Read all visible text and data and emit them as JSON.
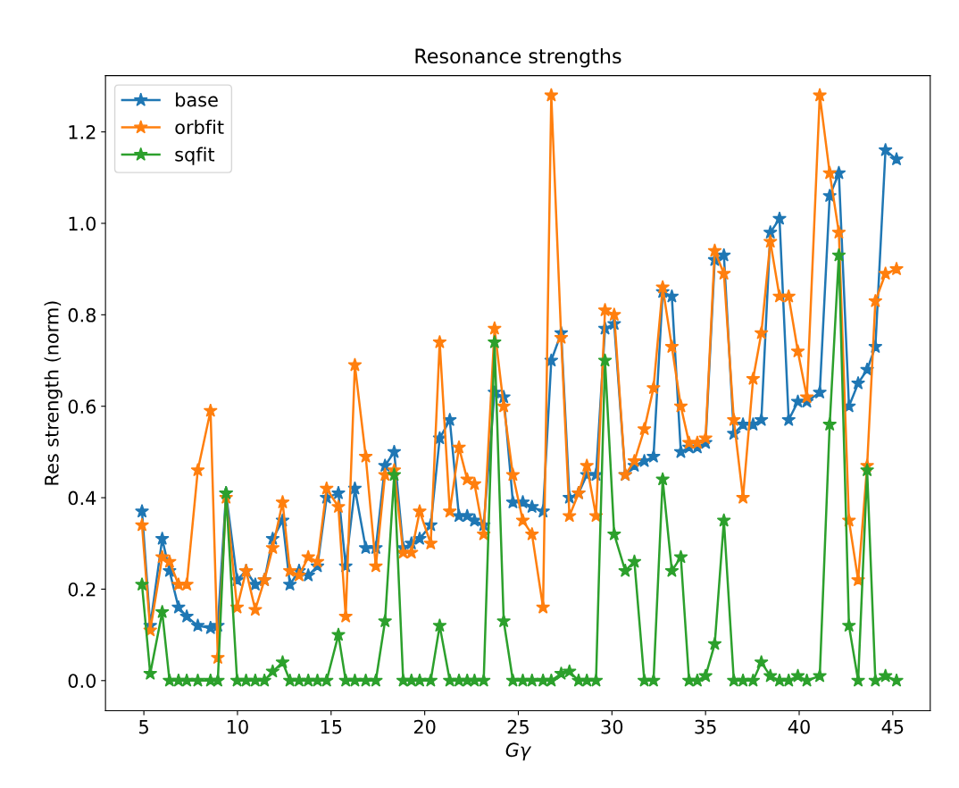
{
  "chart_data": {
    "type": "line",
    "title": "Resonance strengths",
    "xlabel": "Gγ",
    "ylabel": "Res strength (norm)",
    "x": [
      4.9,
      5.34,
      5.98,
      6.37,
      6.85,
      7.29,
      7.88,
      8.56,
      8.95,
      9.39,
      9.98,
      10.46,
      10.95,
      11.44,
      11.88,
      12.41,
      12.8,
      13.29,
      13.78,
      14.27,
      14.76,
      15.39,
      15.78,
      16.27,
      16.85,
      17.39,
      17.88,
      18.37,
      18.85,
      19.29,
      19.73,
      20.32,
      20.8,
      21.34,
      21.83,
      22.27,
      22.66,
      23.15,
      23.73,
      24.22,
      24.71,
      25.24,
      25.73,
      26.32,
      26.76,
      27.29,
      27.73,
      28.22,
      28.66,
      29.15,
      29.63,
      30.12,
      30.71,
      31.2,
      31.73,
      32.22,
      32.71,
      33.2,
      33.68,
      34.12,
      34.56,
      35.0,
      35.49,
      35.98,
      36.51,
      37.0,
      37.54,
      37.98,
      38.46,
      38.95,
      39.44,
      39.93,
      40.41,
      41.1,
      41.63,
      42.12,
      42.66,
      43.15,
      43.63,
      44.07,
      44.61,
      45.2
    ],
    "series": [
      {
        "name": "base",
        "color": "#1f77b4",
        "values": [
          0.37,
          0.12,
          0.31,
          0.24,
          0.16,
          0.14,
          0.12,
          0.115,
          0.12,
          0.41,
          0.22,
          0.24,
          0.21,
          0.22,
          0.31,
          0.35,
          0.21,
          0.24,
          0.23,
          0.25,
          0.4,
          0.41,
          0.25,
          0.42,
          0.29,
          0.29,
          0.47,
          0.5,
          0.29,
          0.3,
          0.31,
          0.34,
          0.53,
          0.57,
          0.36,
          0.36,
          0.35,
          0.34,
          0.63,
          0.62,
          0.39,
          0.39,
          0.38,
          0.37,
          0.7,
          0.76,
          0.4,
          0.41,
          0.45,
          0.45,
          0.77,
          0.78,
          0.45,
          0.47,
          0.48,
          0.49,
          0.85,
          0.84,
          0.5,
          0.51,
          0.51,
          0.52,
          0.92,
          0.93,
          0.54,
          0.56,
          0.56,
          0.57,
          0.98,
          1.01,
          0.57,
          0.61,
          0.61,
          0.63,
          1.06,
          1.11,
          0.6,
          0.65,
          0.68,
          0.73,
          1.16,
          1.14
        ]
      },
      {
        "name": "orbfit",
        "color": "#ff7f0e",
        "values": [
          0.34,
          0.11,
          0.27,
          0.26,
          0.21,
          0.21,
          0.46,
          0.59,
          0.05,
          0.4,
          0.16,
          0.24,
          0.155,
          0.22,
          0.29,
          0.39,
          0.24,
          0.23,
          0.27,
          0.26,
          0.42,
          0.38,
          0.14,
          0.69,
          0.49,
          0.25,
          0.45,
          0.46,
          0.28,
          0.28,
          0.37,
          0.3,
          0.74,
          0.37,
          0.51,
          0.44,
          0.43,
          0.32,
          0.77,
          0.6,
          0.45,
          0.35,
          0.32,
          0.16,
          1.28,
          0.75,
          0.36,
          0.41,
          0.47,
          0.36,
          0.81,
          0.8,
          0.45,
          0.48,
          0.55,
          0.64,
          0.86,
          0.73,
          0.6,
          0.52,
          0.52,
          0.53,
          0.94,
          0.89,
          0.57,
          0.4,
          0.66,
          0.76,
          0.96,
          0.84,
          0.84,
          0.72,
          0.62,
          1.28,
          1.11,
          0.98,
          0.35,
          0.22,
          0.47,
          0.83,
          0.89,
          0.9
        ]
      },
      {
        "name": "sqfit",
        "color": "#2ca02c",
        "values": [
          0.21,
          0.015,
          0.15,
          0,
          0,
          0,
          0,
          0,
          0,
          0.41,
          0,
          0,
          0,
          0,
          0.02,
          0.04,
          0,
          0,
          0,
          0,
          0,
          0.1,
          0,
          0,
          0,
          0,
          0.13,
          0.45,
          0,
          0,
          0,
          0,
          0.12,
          0,
          0,
          0,
          0,
          0,
          0.74,
          0.13,
          0,
          0,
          0,
          0,
          0,
          0.015,
          0.02,
          0,
          0,
          0,
          0.7,
          0.32,
          0.24,
          0.26,
          0,
          0,
          0.44,
          0.24,
          0.27,
          0,
          0,
          0.01,
          0.08,
          0.35,
          0,
          0,
          0,
          0.04,
          0.01,
          0,
          0,
          0.01,
          0,
          0.01,
          0.56,
          0.93,
          0.12,
          0,
          0.46,
          0,
          0.01,
          0
        ]
      }
    ],
    "xlim": [
      2.95,
      47.0
    ],
    "xticks": [
      5,
      10,
      15,
      20,
      25,
      30,
      35,
      40,
      45
    ],
    "ylim": [
      -0.066,
      1.323
    ],
    "yticks": [
      {
        "value": 0,
        "label": "0.0"
      },
      {
        "value": 0.2,
        "label": "0.2"
      },
      {
        "value": 0.4,
        "label": "0.4"
      },
      {
        "value": 0.6,
        "label": "0.6"
      },
      {
        "value": 0.8,
        "label": "0.8"
      },
      {
        "value": 1.0,
        "label": "1.0"
      },
      {
        "value": 1.2,
        "label": "1.2"
      }
    ],
    "marker": "star",
    "line_style": "solid",
    "legend": "top left",
    "grid": false
  }
}
